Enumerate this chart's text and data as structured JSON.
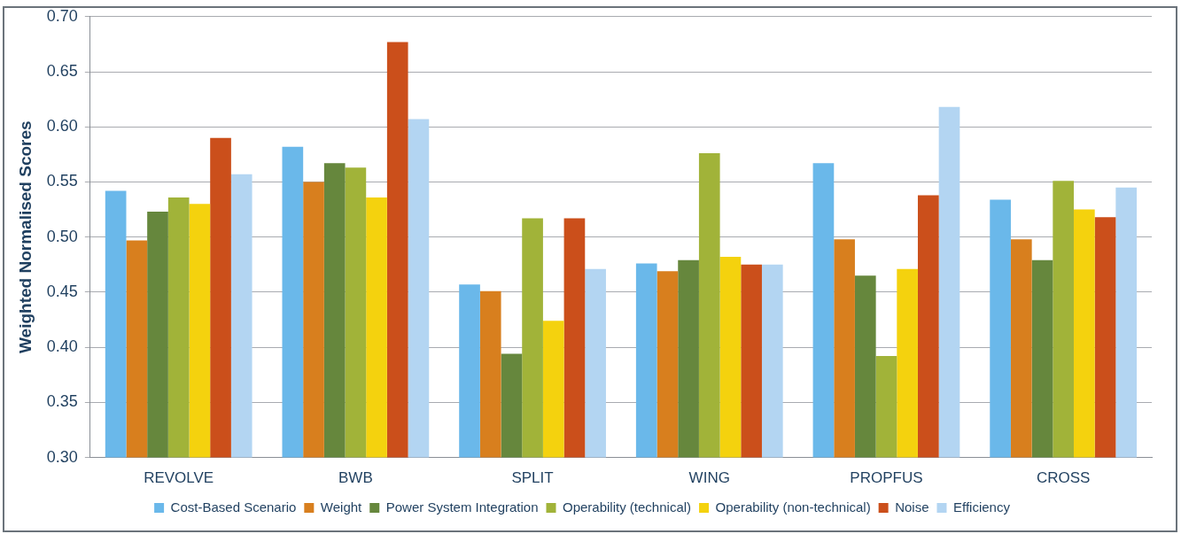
{
  "chart_data": {
    "type": "bar",
    "ylabel": "Weighted Normalised Scores",
    "categories": [
      "REVOLVE",
      "BWB",
      "SPLIT",
      "WING",
      "PROPFUS",
      "CROSS"
    ],
    "series": [
      {
        "name": "Cost-Based Scenario",
        "color": "#6ab8ea",
        "values": [
          0.542,
          0.582,
          0.457,
          0.476,
          0.567,
          0.534
        ]
      },
      {
        "name": "Weight",
        "color": "#d87f1e",
        "values": [
          0.497,
          0.55,
          0.451,
          0.469,
          0.498,
          0.498
        ]
      },
      {
        "name": "Power System Integration",
        "color": "#66873d",
        "values": [
          0.523,
          0.567,
          0.394,
          0.479,
          0.465,
          0.479
        ]
      },
      {
        "name": "Operability (technical)",
        "color": "#a1b339",
        "values": [
          0.536,
          0.563,
          0.517,
          0.576,
          0.392,
          0.551
        ]
      },
      {
        "name": "Operability (non-technical)",
        "color": "#f4d20e",
        "values": [
          0.53,
          0.536,
          0.424,
          0.482,
          0.471,
          0.525
        ]
      },
      {
        "name": "Noise",
        "color": "#cb4f1b",
        "values": [
          0.59,
          0.677,
          0.517,
          0.475,
          0.538,
          0.518
        ]
      },
      {
        "name": "Efficiency",
        "color": "#b3d5f2",
        "values": [
          0.557,
          0.607,
          0.471,
          0.475,
          0.618,
          0.545
        ]
      }
    ],
    "ylim": [
      0.3,
      0.7
    ],
    "yticks": [
      {
        "value": 0.3,
        "label": "0.30"
      },
      {
        "value": 0.35,
        "label": "0.35"
      },
      {
        "value": 0.4,
        "label": "0.40"
      },
      {
        "value": 0.45,
        "label": "0.45"
      },
      {
        "value": 0.5,
        "label": "0.50"
      },
      {
        "value": 0.55,
        "label": "0.55"
      },
      {
        "value": 0.6,
        "label": "0.60"
      },
      {
        "value": 0.65,
        "label": "0.65"
      },
      {
        "value": 0.7,
        "label": "0.70"
      }
    ],
    "grid": "y",
    "legend": "bottom"
  }
}
